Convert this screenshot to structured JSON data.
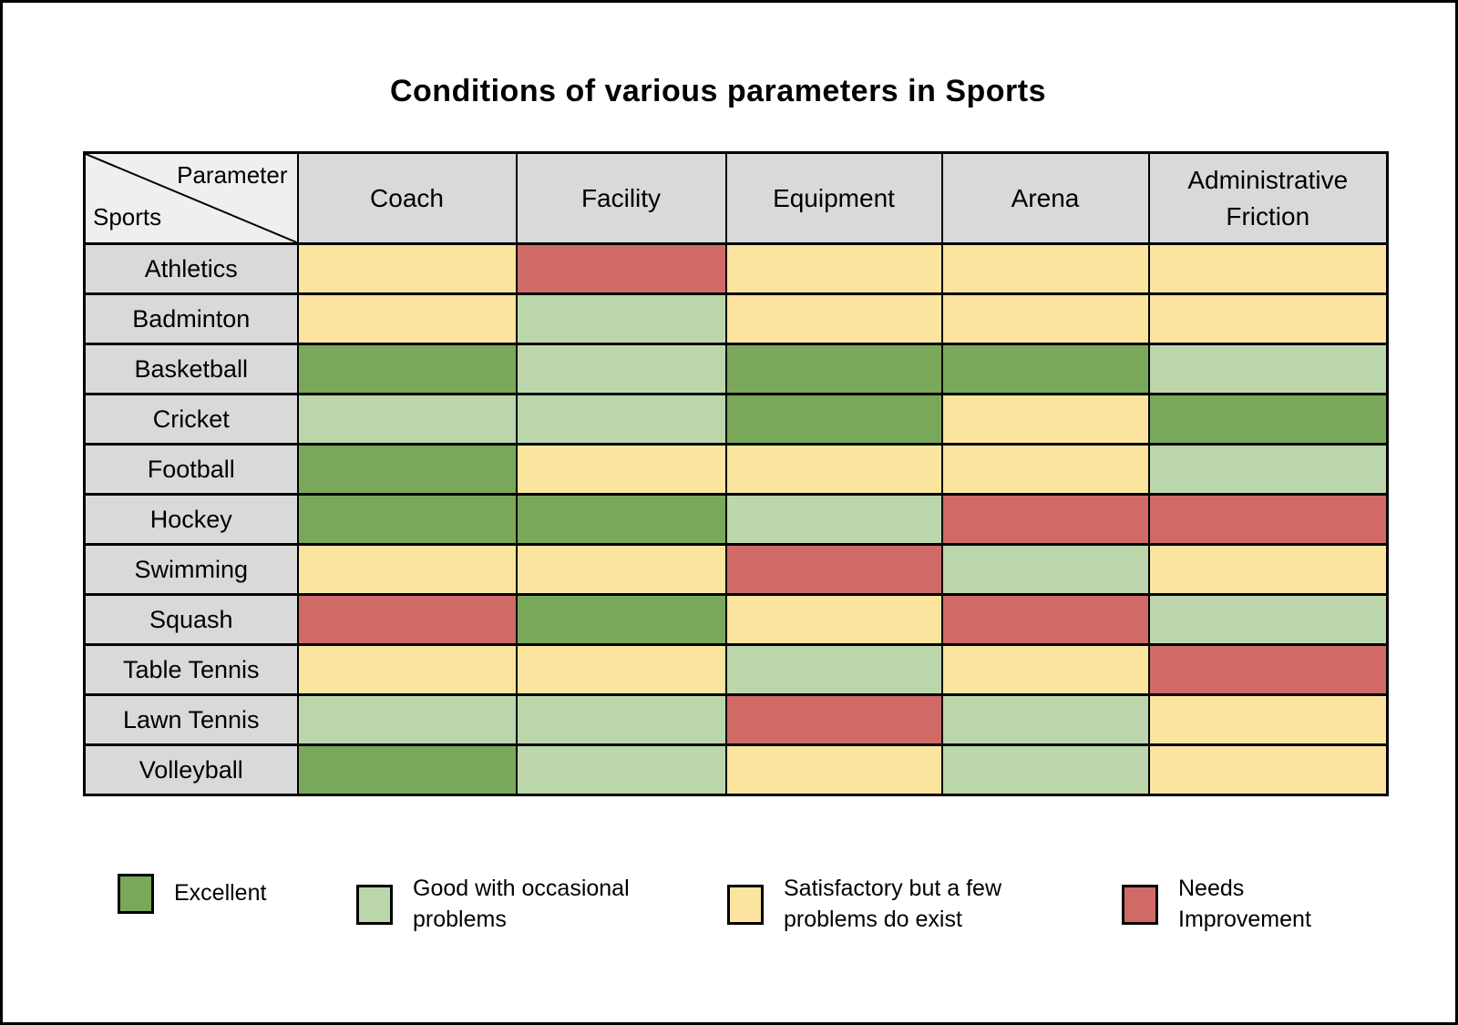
{
  "title": "Conditions of various parameters in Sports",
  "corner": {
    "parameter_label": "Parameter",
    "sports_label": "Sports"
  },
  "chart_data": {
    "type": "heatmap",
    "title": "Conditions of various parameters in Sports",
    "columns": [
      "Coach",
      "Facility",
      "Equipment",
      "Arena",
      "Administrative Friction"
    ],
    "rows": [
      "Athletics",
      "Badminton",
      "Basketball",
      "Cricket",
      "Football",
      "Hockey",
      "Swimming",
      "Squash",
      "Table Tennis",
      "Lawn Tennis",
      "Volleyball"
    ],
    "values": [
      [
        "satisfactory",
        "needs-improvement",
        "satisfactory",
        "satisfactory",
        "satisfactory"
      ],
      [
        "satisfactory",
        "good",
        "satisfactory",
        "satisfactory",
        "satisfactory"
      ],
      [
        "excellent",
        "good",
        "excellent",
        "excellent",
        "good"
      ],
      [
        "good",
        "good",
        "excellent",
        "satisfactory",
        "excellent"
      ],
      [
        "excellent",
        "satisfactory",
        "satisfactory",
        "satisfactory",
        "good"
      ],
      [
        "excellent",
        "excellent",
        "good",
        "needs-improvement",
        "needs-improvement"
      ],
      [
        "satisfactory",
        "satisfactory",
        "needs-improvement",
        "good",
        "satisfactory"
      ],
      [
        "needs-improvement",
        "excellent",
        "satisfactory",
        "needs-improvement",
        "good"
      ],
      [
        "satisfactory",
        "satisfactory",
        "good",
        "satisfactory",
        "needs-improvement"
      ],
      [
        "good",
        "good",
        "needs-improvement",
        "good",
        "satisfactory"
      ],
      [
        "excellent",
        "good",
        "satisfactory",
        "good",
        "satisfactory"
      ]
    ],
    "legend": [
      {
        "key": "excellent",
        "label": "Excellent",
        "color": "#7AA85A"
      },
      {
        "key": "good",
        "label": "Good with occasional problems",
        "color": "#BCD6AB"
      },
      {
        "key": "satisfactory",
        "label": "Satisfactory but a few problems do exist",
        "color": "#FAE49E"
      },
      {
        "key": "needs-improvement",
        "label": "Needs Improvement",
        "color": "#CF6A66"
      }
    ],
    "legend_position": "bottom",
    "grid": true
  },
  "colors": {
    "page_bg": "#FFFFFF",
    "border": "#000000",
    "header_bg": "#D9D9D9",
    "corner_bg": "#EFEFEF",
    "excellent": "#7AA85A",
    "good": "#BCD6AB",
    "satisfactory": "#FAE49E",
    "needs_improvement": "#CF6A66"
  }
}
